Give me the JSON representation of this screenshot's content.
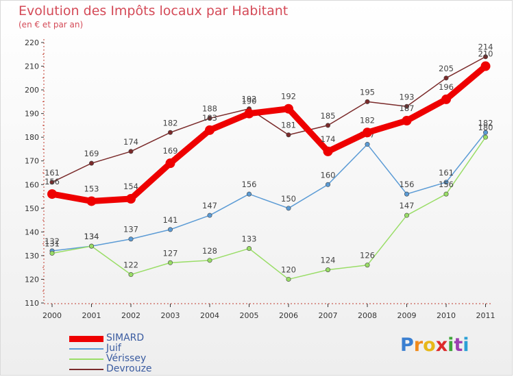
{
  "title": "Evolution des Impôts locaux par Habitant",
  "subtitle": "(en € et par an)",
  "brand": {
    "text": "Proxiti",
    "letter_colors": [
      "#3a7fd1",
      "#f08a1c",
      "#e7b818",
      "#dd2a2a",
      "#3fa53a",
      "#9b3fb0",
      "#2aa0d6"
    ]
  },
  "chart_data": {
    "type": "line",
    "x": [
      "2000",
      "2001",
      "2002",
      "2003",
      "2004",
      "2005",
      "2006",
      "2007",
      "2008",
      "2009",
      "2010",
      "2011"
    ],
    "ylim": [
      110,
      220
    ],
    "yticks": [
      110,
      120,
      130,
      140,
      150,
      160,
      170,
      180,
      190,
      200,
      210,
      220
    ],
    "grid": false,
    "legend_position": "bottom-left",
    "series": [
      {
        "name": "SIMARD",
        "values": [
          156,
          153,
          154,
          169,
          183,
          190,
          192,
          174,
          182,
          187,
          196,
          210
        ],
        "color": "#ee0000",
        "emphasis": true
      },
      {
        "name": "Juif",
        "values": [
          132,
          134,
          137,
          141,
          147,
          156,
          150,
          160,
          177,
          156,
          161,
          182
        ],
        "color": "#5b9bd5"
      },
      {
        "name": "Vérissey",
        "values": [
          131,
          134,
          122,
          127,
          128,
          133,
          120,
          124,
          126,
          147,
          156,
          180
        ],
        "color": "#99dd66"
      },
      {
        "name": "Devrouze",
        "values": [
          161,
          169,
          174,
          182,
          188,
          192,
          181,
          185,
          195,
          193,
          205,
          214
        ],
        "color": "#7a2a2a"
      }
    ]
  }
}
